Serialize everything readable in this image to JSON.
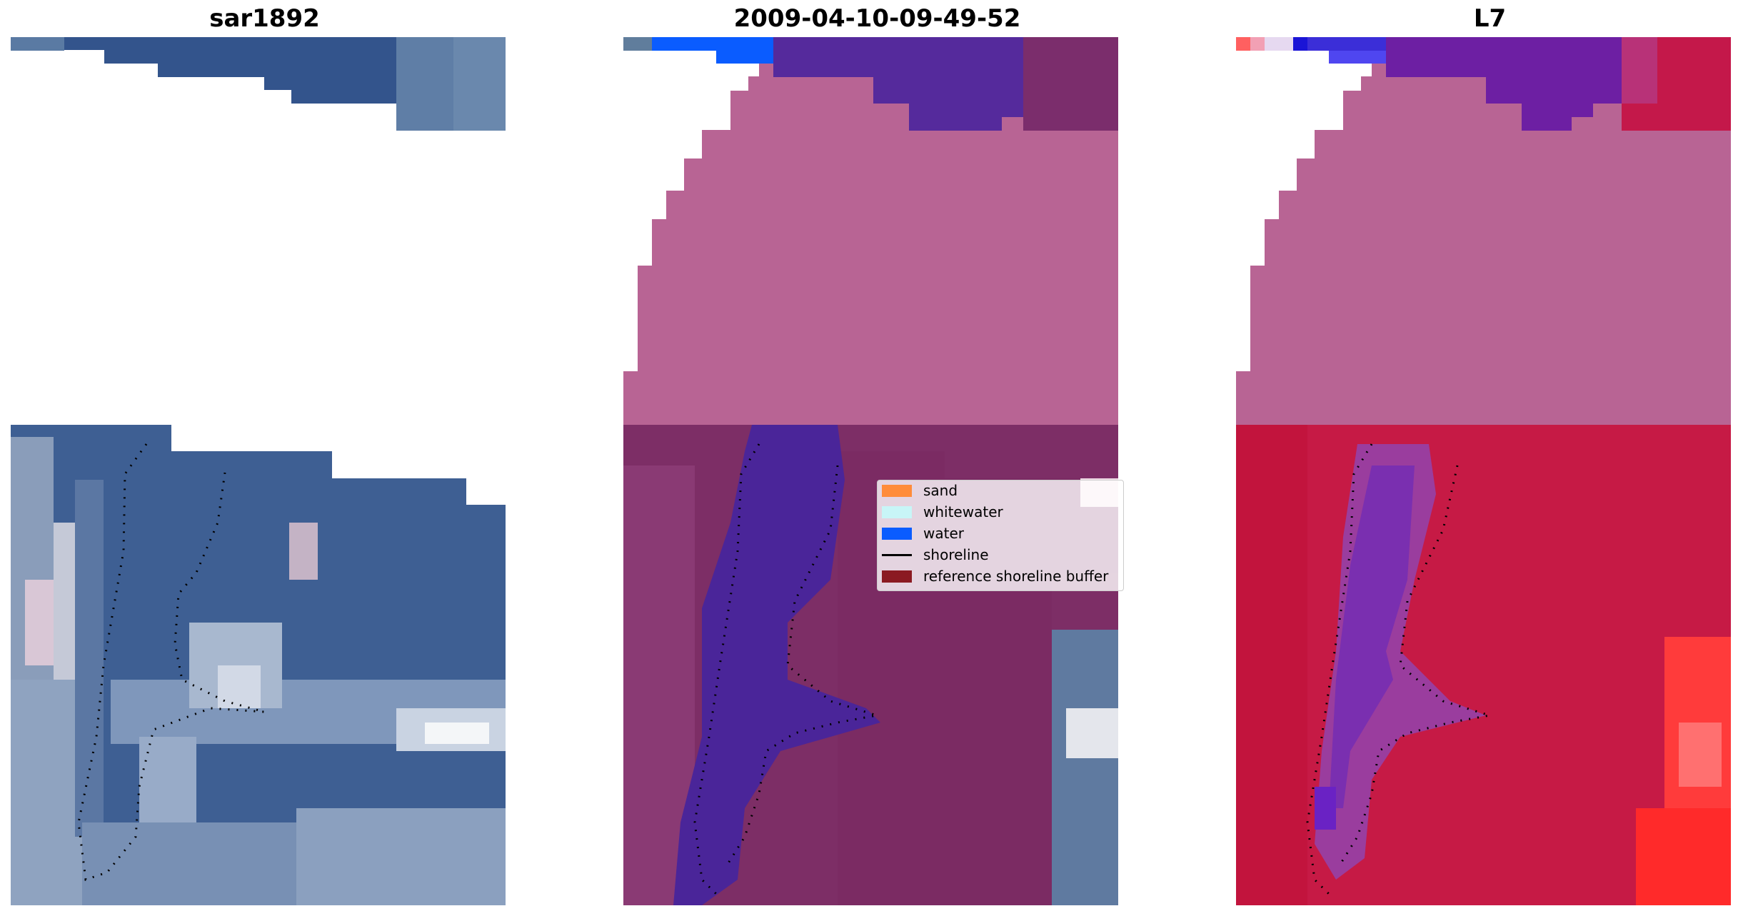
{
  "titles": {
    "left": "sar1892",
    "center": "2009-04-10-09-49-52",
    "right": "L7"
  },
  "legend": {
    "items": [
      {
        "label": "sand",
        "color": "#ff8c3a",
        "kind": "patch"
      },
      {
        "label": "whitewater",
        "color": "#c8f5f7",
        "kind": "patch"
      },
      {
        "label": "water",
        "color": "#0a5cff",
        "kind": "patch"
      },
      {
        "label": "shoreline",
        "color": "#000000",
        "kind": "line"
      },
      {
        "label": "reference shoreline buffer",
        "color": "#8b1a22",
        "kind": "patch"
      }
    ]
  },
  "colors": {
    "satellite_water": "#3d5a8f",
    "satellite_land": "#6a82a6",
    "mask_pink": "#b86494",
    "buffer_purple": "#7d2e66",
    "water_indigo": "#4a2599",
    "index_red": "#c61a45",
    "index_bright_red": "#ff2a2a",
    "shoreline": "#000000"
  }
}
